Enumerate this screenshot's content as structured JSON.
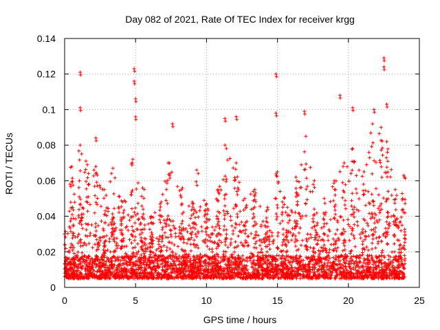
{
  "chart_data": {
    "type": "scatter",
    "title": "Day 082 of 2021, Rate Of TEC Index for receiver krgg",
    "xlabel": "GPS time / hours",
    "ylabel": "ROTI / TECUs",
    "xlim": [
      0,
      25
    ],
    "ylim": [
      0,
      0.14
    ],
    "x_ticks": [
      0,
      5,
      10,
      15,
      20,
      25
    ],
    "y_ticks": [
      0,
      0.02,
      0.04,
      0.06,
      0.08,
      0.1,
      0.12,
      0.14
    ],
    "x_tick_labels": [
      "0",
      "5",
      "10",
      "15",
      "20",
      "25"
    ],
    "y_tick_labels": [
      "0",
      "0.02",
      "0.04",
      "0.06",
      "0.08",
      "0.1",
      "0.12",
      "0.14"
    ],
    "grid": true,
    "marker": "+",
    "marker_color": "#ff0000",
    "series": [
      {
        "name": "ROTI",
        "notable_points": [
          {
            "x": 1.1,
            "y": 0.121
          },
          {
            "x": 1.1,
            "y": 0.101
          },
          {
            "x": 2.2,
            "y": 0.084
          },
          {
            "x": 4.9,
            "y": 0.123
          },
          {
            "x": 4.9,
            "y": 0.116
          },
          {
            "x": 5.0,
            "y": 0.106
          },
          {
            "x": 5.0,
            "y": 0.096
          },
          {
            "x": 7.6,
            "y": 0.092
          },
          {
            "x": 11.3,
            "y": 0.095
          },
          {
            "x": 12.1,
            "y": 0.096
          },
          {
            "x": 14.9,
            "y": 0.12
          },
          {
            "x": 14.9,
            "y": 0.098
          },
          {
            "x": 16.9,
            "y": 0.099
          },
          {
            "x": 19.4,
            "y": 0.108
          },
          {
            "x": 20.3,
            "y": 0.101
          },
          {
            "x": 21.8,
            "y": 0.1
          },
          {
            "x": 22.5,
            "y": 0.129
          },
          {
            "x": 22.5,
            "y": 0.124
          },
          {
            "x": 22.7,
            "y": 0.103
          }
        ],
        "envelope_peaks": [
          {
            "x": 0.0,
            "y": 0.03
          },
          {
            "x": 0.5,
            "y": 0.068
          },
          {
            "x": 1.1,
            "y": 0.08
          },
          {
            "x": 1.6,
            "y": 0.069
          },
          {
            "x": 2.2,
            "y": 0.068
          },
          {
            "x": 2.8,
            "y": 0.055
          },
          {
            "x": 3.4,
            "y": 0.067
          },
          {
            "x": 4.1,
            "y": 0.048
          },
          {
            "x": 4.8,
            "y": 0.072
          },
          {
            "x": 5.5,
            "y": 0.056
          },
          {
            "x": 6.1,
            "y": 0.04
          },
          {
            "x": 6.8,
            "y": 0.048
          },
          {
            "x": 7.3,
            "y": 0.07
          },
          {
            "x": 8.3,
            "y": 0.056
          },
          {
            "x": 9.0,
            "y": 0.048
          },
          {
            "x": 9.3,
            "y": 0.066
          },
          {
            "x": 10.0,
            "y": 0.047
          },
          {
            "x": 10.8,
            "y": 0.055
          },
          {
            "x": 11.3,
            "y": 0.08
          },
          {
            "x": 12.1,
            "y": 0.07
          },
          {
            "x": 12.7,
            "y": 0.05
          },
          {
            "x": 13.4,
            "y": 0.055
          },
          {
            "x": 14.3,
            "y": 0.045
          },
          {
            "x": 15.0,
            "y": 0.065
          },
          {
            "x": 15.7,
            "y": 0.045
          },
          {
            "x": 16.3,
            "y": 0.062
          },
          {
            "x": 17.0,
            "y": 0.085
          },
          {
            "x": 17.6,
            "y": 0.06
          },
          {
            "x": 18.3,
            "y": 0.05
          },
          {
            "x": 19.0,
            "y": 0.06
          },
          {
            "x": 19.7,
            "y": 0.07
          },
          {
            "x": 20.3,
            "y": 0.078
          },
          {
            "x": 21.1,
            "y": 0.065
          },
          {
            "x": 21.7,
            "y": 0.092
          },
          {
            "x": 22.3,
            "y": 0.09
          },
          {
            "x": 22.7,
            "y": 0.082
          },
          {
            "x": 23.3,
            "y": 0.055
          },
          {
            "x": 23.9,
            "y": 0.063
          }
        ],
        "baseline": {
          "x_range": [
            0,
            24
          ],
          "y_min": 0.005,
          "y_typical": 0.012
        }
      }
    ]
  }
}
